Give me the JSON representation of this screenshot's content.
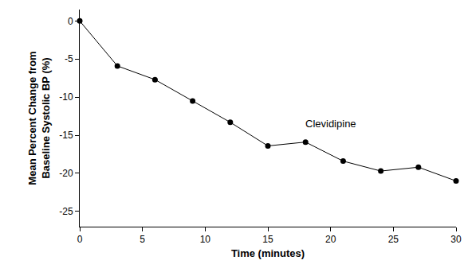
{
  "chart_data": {
    "type": "line",
    "x_label": "Time (minutes)",
    "y_label": [
      "Mean Percent Change from",
      "Baseline Systolic BP (%)"
    ],
    "x": [
      0,
      3,
      6,
      9,
      12,
      15,
      18,
      21,
      24,
      27,
      30
    ],
    "series": [
      {
        "name": "Clevidipine",
        "color": "#000000",
        "marker": "circle",
        "line_style": "solid",
        "values": [
          0,
          -5.9,
          -7.7,
          -10.5,
          -13.3,
          -16.4,
          -15.9,
          -18.4,
          -19.7,
          -19.2,
          -21.0
        ]
      }
    ],
    "annotations": [
      {
        "text": "Clevidipine",
        "x": 20,
        "y": -13.5
      }
    ],
    "xlim": [
      0,
      30
    ],
    "xticks": [
      0,
      5,
      10,
      15,
      20,
      25,
      30
    ],
    "ylim": [
      -27,
      1.5
    ],
    "yticks": [
      -25,
      -20,
      -15,
      -10,
      -5,
      0
    ],
    "grid": false
  }
}
